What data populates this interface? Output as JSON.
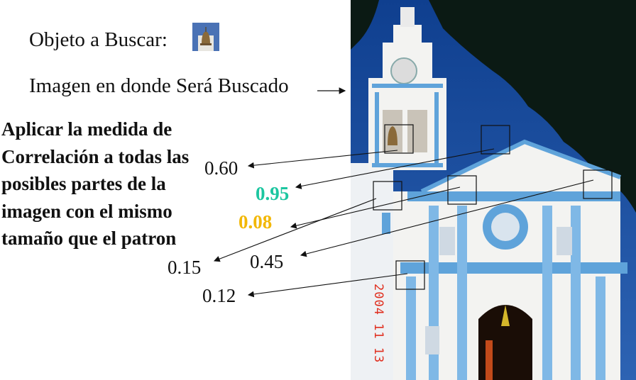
{
  "labels": {
    "object_to_find": "Objeto a Buscar:",
    "search_image": "Imagen en donde Será Buscado",
    "instructions": "Aplicar la medida de Correlación a todas las posibles partes de la imagen con el mismo tamaño que el patron"
  },
  "photo_datestamp": "2004 11 13",
  "scores": [
    {
      "value": "0.60",
      "color": "#111111",
      "bold": false
    },
    {
      "value": "0.95",
      "color": "#1cc6a0",
      "bold": true
    },
    {
      "value": "0.08",
      "color": "#f2b705",
      "bold": true
    },
    {
      "value": "0.15",
      "color": "#111111",
      "bold": false
    },
    {
      "value": "0.45",
      "color": "#111111",
      "bold": false
    },
    {
      "value": "0.12",
      "color": "#111111",
      "bold": false
    }
  ],
  "colors": {
    "sky": "#1d4f9c",
    "facade_blue": "#5fa3da",
    "facade_white": "#f3f3f1"
  },
  "icons": {
    "object_thumbnail": "bell-icon"
  }
}
